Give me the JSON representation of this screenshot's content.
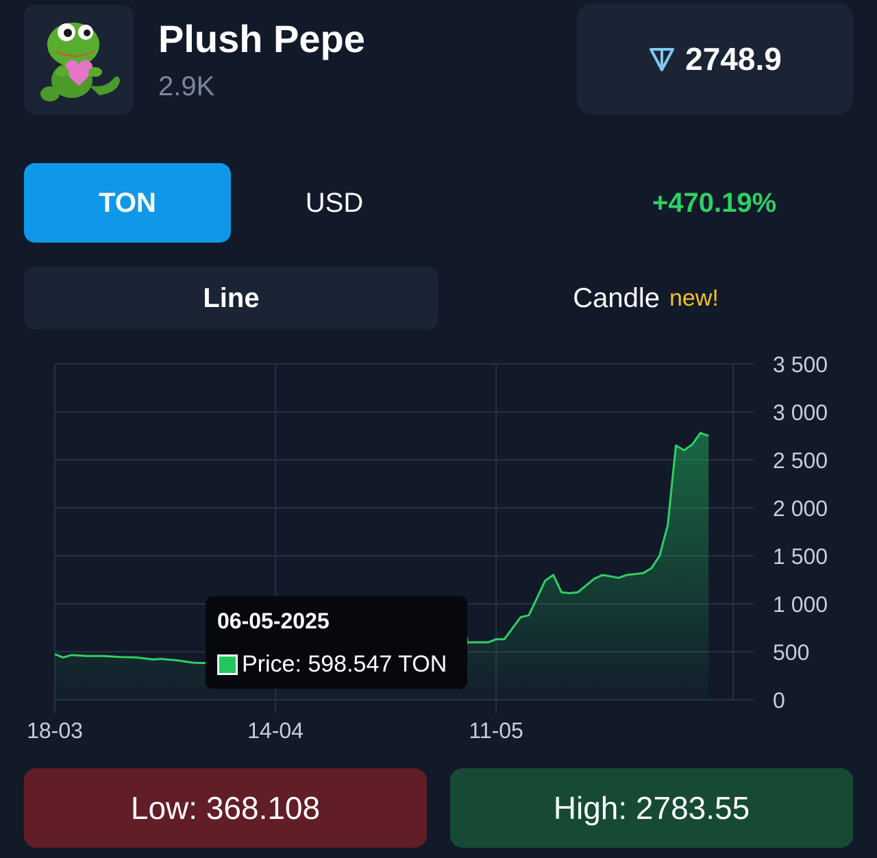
{
  "item": {
    "name": "Plush Pepe",
    "count": "2.9K",
    "image_icon": "plush-pepe-frog-holding-heart"
  },
  "price": {
    "icon": "ton-logo-icon",
    "value": "2748.9"
  },
  "currency_tabs": {
    "ton_label": "TON",
    "usd_label": "USD",
    "active": "TON"
  },
  "change": "+470.19%",
  "chart_type_tabs": {
    "line_label": "Line",
    "candle_label": "Candle",
    "candle_badge": "new!",
    "active": "Line"
  },
  "tooltip": {
    "date": "06-05-2025",
    "price_text": "Price: 598.547 TON"
  },
  "stats": {
    "low": "Low: 368.108",
    "high": "High: 2783.55"
  },
  "colors": {
    "accent_blue": "#0f98e7",
    "up_green": "#2fcf63",
    "line_green": "#22c55e",
    "badge_yellow": "#f2c229",
    "low_bg": "#621e26",
    "high_bg": "#164a34"
  },
  "chart_data": {
    "type": "area",
    "x_labels": [
      "18-03",
      "14-04",
      "11-05"
    ],
    "y_ticks": [
      "0",
      "500",
      "1 000",
      "1 500",
      "2 000",
      "2 500",
      "3 000",
      "3 500"
    ],
    "y_tick_values": [
      0,
      500,
      1000,
      1500,
      2000,
      2500,
      3000,
      3500
    ],
    "ylim": [
      0,
      3500
    ],
    "x_start_label": "18-03",
    "x_days": 83,
    "x_label_days": [
      0,
      27,
      54
    ],
    "series": [
      {
        "values": [
          [
            0,
            475
          ],
          [
            1,
            440
          ],
          [
            2,
            465
          ],
          [
            4,
            455
          ],
          [
            6,
            455
          ],
          [
            8,
            445
          ],
          [
            10,
            440
          ],
          [
            12,
            420
          ],
          [
            13,
            425
          ],
          [
            15,
            410
          ],
          [
            17,
            385
          ],
          [
            19,
            380
          ],
          [
            21,
            395
          ],
          [
            24,
            410
          ],
          [
            27,
            430
          ],
          [
            30,
            465
          ],
          [
            33,
            480
          ],
          [
            36,
            500
          ],
          [
            39,
            545
          ],
          [
            42,
            570
          ],
          [
            45,
            590
          ],
          [
            47,
            565
          ],
          [
            49,
            598
          ],
          [
            50,
            600
          ],
          [
            51,
            598
          ],
          [
            53,
            598
          ],
          [
            54,
            630
          ],
          [
            55,
            630
          ],
          [
            57,
            860
          ],
          [
            58,
            880
          ],
          [
            60,
            1240
          ],
          [
            61,
            1300
          ],
          [
            62,
            1120
          ],
          [
            63,
            1110
          ],
          [
            64,
            1120
          ],
          [
            66,
            1260
          ],
          [
            67,
            1300
          ],
          [
            69,
            1270
          ],
          [
            70,
            1300
          ],
          [
            72,
            1320
          ],
          [
            73,
            1370
          ],
          [
            74,
            1500
          ],
          [
            75,
            1820
          ],
          [
            76,
            2650
          ],
          [
            77,
            2600
          ],
          [
            78,
            2660
          ],
          [
            79,
            2780
          ],
          [
            80,
            2750
          ]
        ]
      }
    ],
    "grid": true,
    "highlight_point": {
      "x": 49,
      "y": 598.547
    }
  }
}
